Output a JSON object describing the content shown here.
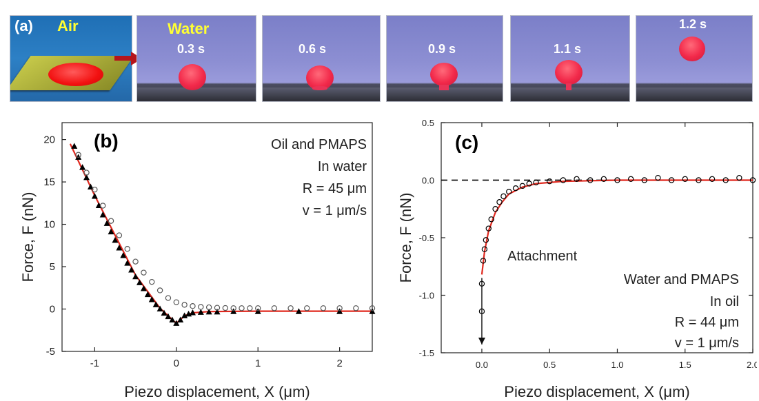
{
  "panel_a": {
    "label": "(a)",
    "air_label": "Air",
    "water_label": "Water",
    "frames": [
      "0.3 s",
      "0.6 s",
      "0.9 s",
      "1.1 s",
      "1.2 s"
    ]
  },
  "chart_data": [
    {
      "type": "scatter",
      "panel_label": "(b)",
      "xlabel": "Piezo displacement, X (μm)",
      "ylabel": "Force, F (nN)",
      "xlim": [
        -1.4,
        2.4
      ],
      "ylim": [
        -5,
        22
      ],
      "x_ticks": [
        -1,
        0,
        1,
        2
      ],
      "x_tick_labels": [
        "-1",
        "0",
        "1",
        "2"
      ],
      "y_ticks": [
        -5,
        0,
        5,
        10,
        15,
        20
      ],
      "y_tick_labels": [
        "-5",
        "0",
        "5",
        "10",
        "15",
        "20"
      ],
      "annotations": [
        "Oil and PMAPS",
        "In water",
        "R = 45 μm",
        "v = 1 μm/s"
      ],
      "series": [
        {
          "marker": "triangle",
          "color": "#000000",
          "x": [
            -1.25,
            -1.2,
            -1.15,
            -1.1,
            -1.05,
            -1.0,
            -0.95,
            -0.9,
            -0.85,
            -0.8,
            -0.75,
            -0.7,
            -0.65,
            -0.6,
            -0.55,
            -0.5,
            -0.45,
            -0.4,
            -0.35,
            -0.3,
            -0.25,
            -0.2,
            -0.15,
            -0.1,
            -0.05,
            0.0,
            0.05,
            0.1,
            0.15,
            0.2,
            0.3,
            0.4,
            0.5,
            0.7,
            1.0,
            1.5,
            2.0,
            2.4
          ],
          "y": [
            19.2,
            17.9,
            16.7,
            15.5,
            14.4,
            13.3,
            12.2,
            11.1,
            10.1,
            9.1,
            8.1,
            7.2,
            6.3,
            5.4,
            4.6,
            3.8,
            3.1,
            2.4,
            1.7,
            1.1,
            0.5,
            0.0,
            -0.5,
            -0.9,
            -1.3,
            -1.7,
            -1.3,
            -0.8,
            -0.6,
            -0.45,
            -0.4,
            -0.35,
            -0.35,
            -0.3,
            -0.3,
            -0.3,
            -0.3,
            -0.3
          ]
        },
        {
          "marker": "circle",
          "color": "#555555",
          "x": [
            -1.2,
            -1.1,
            -1.0,
            -0.9,
            -0.8,
            -0.7,
            -0.6,
            -0.5,
            -0.4,
            -0.3,
            -0.2,
            -0.1,
            0.0,
            0.1,
            0.2,
            0.3,
            0.4,
            0.5,
            0.6,
            0.7,
            0.8,
            0.9,
            1.0,
            1.2,
            1.4,
            1.6,
            1.8,
            2.0,
            2.2,
            2.4
          ],
          "y": [
            18.2,
            16.1,
            14.1,
            12.2,
            10.4,
            8.7,
            7.1,
            5.6,
            4.3,
            3.2,
            2.2,
            1.3,
            0.8,
            0.5,
            0.35,
            0.25,
            0.2,
            0.15,
            0.12,
            0.1,
            0.1,
            0.1,
            0.1,
            0.1,
            0.1,
            0.1,
            0.1,
            0.1,
            0.1,
            0.1
          ]
        },
        {
          "marker": "line",
          "color": "#e0281e",
          "x": [
            -1.3,
            -1.0,
            -0.5,
            -0.2,
            0.0,
            0.1,
            0.2,
            0.4,
            1.0,
            2.4
          ],
          "y": [
            19.5,
            13.4,
            4.0,
            0.1,
            -1.7,
            -0.8,
            -0.45,
            -0.3,
            -0.25,
            -0.25
          ]
        }
      ]
    },
    {
      "type": "scatter",
      "panel_label": "(c)",
      "xlabel": "Piezo displacement, X (μm)",
      "ylabel": "Force, F (nN)",
      "xlim": [
        -0.3,
        2.0
      ],
      "ylim": [
        -1.5,
        0.5
      ],
      "x_ticks": [
        0.0,
        0.5,
        1.0,
        1.5,
        2.0
      ],
      "x_tick_labels": [
        "0.0",
        "0.5",
        "1.0",
        "1.5",
        "2.0"
      ],
      "y_ticks": [
        -1.5,
        -1.0,
        -0.5,
        0.0,
        0.5
      ],
      "y_tick_labels": [
        "-1.5",
        "-1.0",
        "-0.5",
        "0.0",
        "0.5"
      ],
      "annotations": [
        "Attachment",
        "Water and PMAPS",
        "In oil",
        "R = 44 μm",
        "v = 1 μm/s"
      ],
      "series": [
        {
          "marker": "circle",
          "color": "#000000",
          "x": [
            0.0,
            0.0,
            0.01,
            0.02,
            0.03,
            0.05,
            0.07,
            0.1,
            0.13,
            0.16,
            0.2,
            0.25,
            0.3,
            0.35,
            0.4,
            0.5,
            0.6,
            0.7,
            0.8,
            0.9,
            1.0,
            1.1,
            1.2,
            1.3,
            1.4,
            1.5,
            1.6,
            1.7,
            1.8,
            1.9,
            2.0
          ],
          "y": [
            -1.14,
            -0.9,
            -0.7,
            -0.6,
            -0.52,
            -0.42,
            -0.34,
            -0.25,
            -0.19,
            -0.14,
            -0.1,
            -0.07,
            -0.05,
            -0.03,
            -0.02,
            -0.01,
            0.0,
            0.01,
            0.0,
            0.01,
            0.0,
            0.01,
            0.0,
            0.02,
            0.0,
            0.01,
            0.0,
            0.01,
            0.0,
            0.02,
            0.0
          ]
        },
        {
          "marker": "line",
          "color": "#e0281e",
          "x": [
            0.0,
            0.02,
            0.05,
            0.1,
            0.15,
            0.2,
            0.3,
            0.4,
            0.6,
            0.8,
            1.0,
            1.5,
            2.0
          ],
          "y": [
            -0.82,
            -0.62,
            -0.44,
            -0.28,
            -0.19,
            -0.12,
            -0.06,
            -0.03,
            -0.01,
            -0.005,
            0.0,
            0.0,
            0.0
          ]
        }
      ]
    }
  ]
}
